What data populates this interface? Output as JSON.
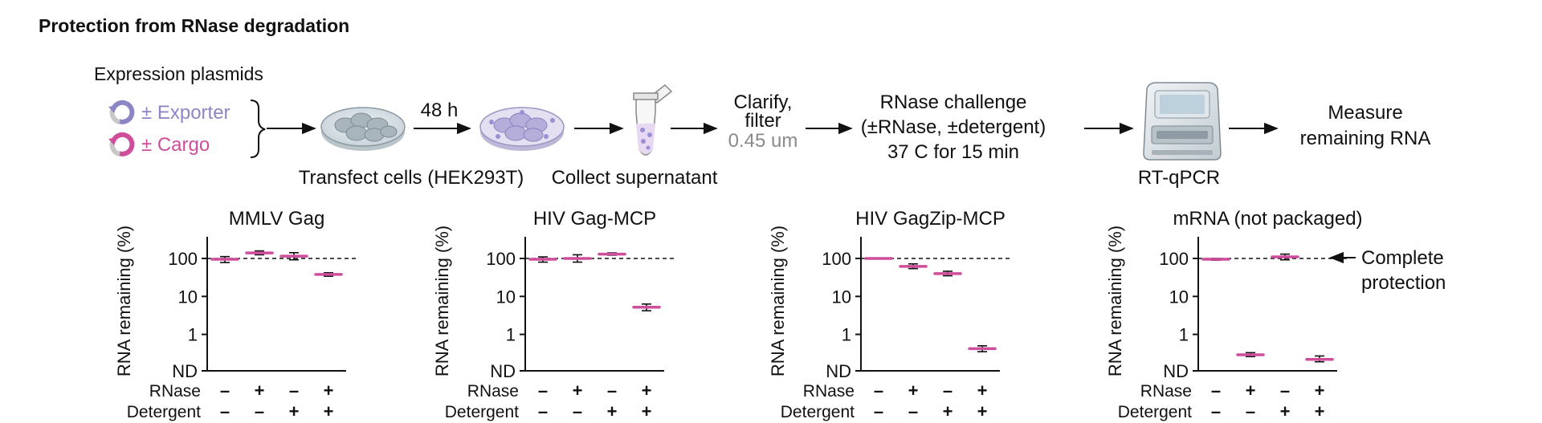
{
  "title": "Protection from RNase degradation",
  "workflow": {
    "plasmids_header": "Expression plasmids",
    "exporter_label": "± Exporter",
    "cargo_label": "± Cargo",
    "time_label": "48 h",
    "transfect_caption": "Transfect cells (HEK293T)",
    "collect_caption": "Collect supernatant",
    "clarify_line1": "Clarify,",
    "clarify_line2": "filter",
    "clarify_line3": "0.45 um",
    "challenge_line1": "RNase challenge",
    "challenge_line2": "(±RNase, ±detergent)",
    "challenge_line3": "37 C for 15 min",
    "instrument_caption": "RT-qPCR",
    "measure_line1": "Measure",
    "measure_line2": "remaining RNA"
  },
  "colors": {
    "exporter": "#8d86c4",
    "cargo": "#cf4e9c",
    "point": "#cf4e9c",
    "axis": "#111111",
    "arrow": "#111111",
    "grey_text": "#8a8a8a"
  },
  "icons": {
    "exporter_plasmid": "circular-arrow-icon",
    "cargo_plasmid": "circular-arrow-icon",
    "dish_before": "petri-dish-icon",
    "dish_after": "petri-dish-icon",
    "tube": "microcentrifuge-tube-icon",
    "instrument": "qpcr-instrument-icon"
  },
  "annotation": {
    "line1": "Complete",
    "line2": "protection"
  },
  "chart_data": [
    {
      "type": "scatter",
      "title": "MMLV Gag",
      "ylabel": "RNA remaining (%)",
      "yscale": "log",
      "yticks": [
        "100",
        "10",
        "1",
        "ND"
      ],
      "reference_line": 100,
      "row_labels": [
        "RNase",
        "Detergent"
      ],
      "conditions": [
        {
          "rnase": "–",
          "detergent": "–",
          "value": 95,
          "err_low": 78,
          "err_high": 112
        },
        {
          "rnase": "+",
          "detergent": "–",
          "value": 140,
          "err_low": 125,
          "err_high": 158
        },
        {
          "rnase": "–",
          "detergent": "+",
          "value": 115,
          "err_low": 92,
          "err_high": 142
        },
        {
          "rnase": "+",
          "detergent": "+",
          "value": 38,
          "err_low": 34,
          "err_high": 42
        }
      ]
    },
    {
      "type": "scatter",
      "title": "HIV Gag-MCP",
      "ylabel": "RNA remaining (%)",
      "yscale": "log",
      "yticks": [
        "100",
        "10",
        "1",
        "ND"
      ],
      "reference_line": 100,
      "row_labels": [
        "RNase",
        "Detergent"
      ],
      "conditions": [
        {
          "rnase": "–",
          "detergent": "–",
          "value": 95,
          "err_low": 80,
          "err_high": 110
        },
        {
          "rnase": "+",
          "detergent": "–",
          "value": 100,
          "err_low": 80,
          "err_high": 125
        },
        {
          "rnase": "–",
          "detergent": "+",
          "value": 130,
          "err_low": 122,
          "err_high": 140
        },
        {
          "rnase": "+",
          "detergent": "+",
          "value": 5.2,
          "err_low": 4.2,
          "err_high": 6.3
        }
      ]
    },
    {
      "type": "scatter",
      "title": "HIV GagZip-MCP",
      "ylabel": "RNA remaining (%)",
      "yscale": "log",
      "yticks": [
        "100",
        "10",
        "1",
        "ND"
      ],
      "reference_line": 100,
      "row_labels": [
        "RNase",
        "Detergent"
      ],
      "conditions": [
        {
          "rnase": "–",
          "detergent": "–",
          "value": 100,
          "err_low": 98,
          "err_high": 102
        },
        {
          "rnase": "+",
          "detergent": "–",
          "value": 62,
          "err_low": 54,
          "err_high": 72
        },
        {
          "rnase": "–",
          "detergent": "+",
          "value": 40,
          "err_low": 35,
          "err_high": 46
        },
        {
          "rnase": "+",
          "detergent": "+",
          "value": 0.42,
          "err_low": 0.35,
          "err_high": 0.5
        }
      ]
    },
    {
      "type": "scatter",
      "title": "mRNA (not packaged)",
      "ylabel": "RNA remaining (%)",
      "yscale": "log",
      "yticks": [
        "100",
        "10",
        "1",
        "ND"
      ],
      "reference_line": 100,
      "row_labels": [
        "RNase",
        "Detergent"
      ],
      "conditions": [
        {
          "rnase": "–",
          "detergent": "–",
          "value": 95,
          "err_low": 90,
          "err_high": 100
        },
        {
          "rnase": "+",
          "detergent": "–",
          "value": 0.29,
          "err_low": 0.26,
          "err_high": 0.33
        },
        {
          "rnase": "–",
          "detergent": "+",
          "value": 110,
          "err_low": 92,
          "err_high": 130
        },
        {
          "rnase": "+",
          "detergent": "+",
          "value": 0.22,
          "err_low": 0.19,
          "err_high": 0.27
        }
      ]
    }
  ]
}
